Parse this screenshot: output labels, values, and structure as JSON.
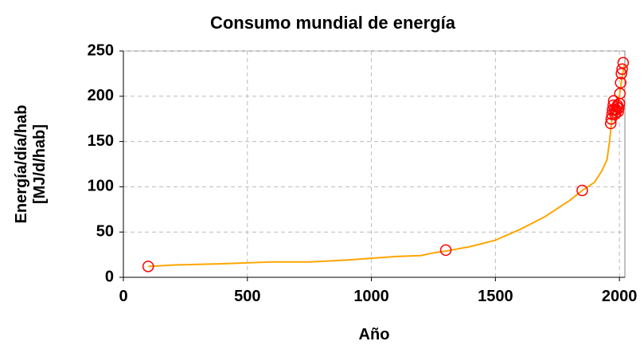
{
  "chart_data": {
    "type": "scatter",
    "title": "Consumo mundial de energía",
    "xlabel": "Año",
    "ylabel": [
      "Energía/día/hab",
      "[MJ/d/hab]"
    ],
    "xlim": [
      0,
      2022
    ],
    "xticks": [
      0,
      500,
      1000,
      1500,
      2000
    ],
    "ylim": [
      0,
      250
    ],
    "yticks": [
      0,
      50,
      100,
      150,
      200,
      250
    ],
    "grid": true,
    "series": [
      {
        "style": "line",
        "color": "#ffa500",
        "x": [
          100,
          200,
          400,
          600,
          750,
          900,
          1000,
          1100,
          1200,
          1250,
          1300,
          1400,
          1500,
          1600,
          1700,
          1800,
          1850,
          1900,
          1930,
          1950,
          1960,
          1970,
          1980,
          1990,
          2000,
          2010,
          2020
        ],
        "values": [
          12,
          13.5,
          15,
          17,
          17,
          19,
          21,
          23,
          24,
          27,
          29,
          34,
          41,
          53,
          67,
          85,
          96,
          105,
          118,
          130,
          150,
          175,
          185,
          190,
          200,
          220,
          235
        ]
      },
      {
        "style": "markers",
        "color": "#ff0000",
        "x": [
          100,
          1300,
          1850,
          1965,
          1967,
          1970,
          1972,
          1975,
          1977,
          1980,
          1982,
          1985,
          1987,
          1990,
          1992,
          1995,
          1997,
          2000,
          2002,
          2005,
          2008,
          2011,
          2015
        ],
        "values": [
          12,
          30,
          96,
          170,
          175,
          180,
          185,
          190,
          195,
          185,
          180,
          182,
          185,
          188,
          190,
          183,
          187,
          192,
          203,
          215,
          225,
          230,
          237
        ]
      }
    ]
  }
}
